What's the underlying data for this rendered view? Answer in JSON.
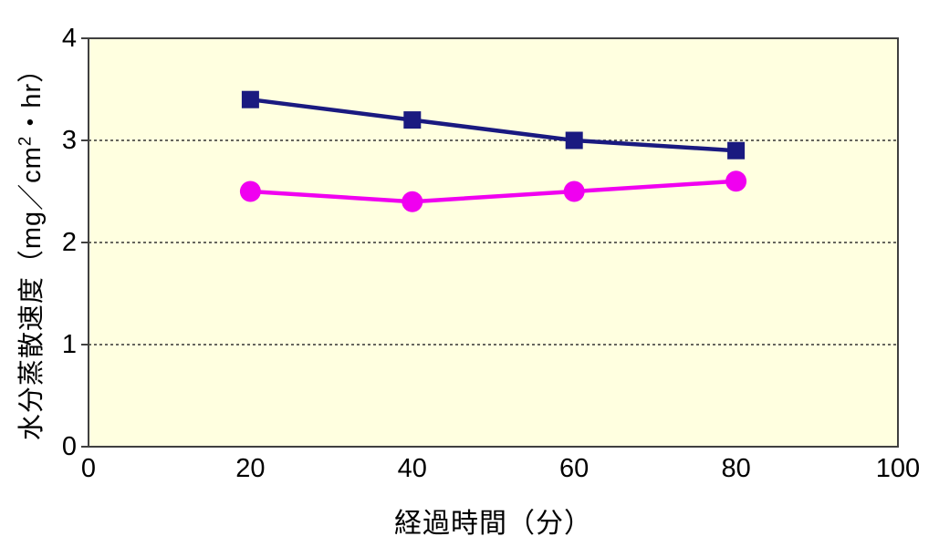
{
  "chart_data": {
    "type": "line",
    "x": [
      20,
      40,
      60,
      80
    ],
    "series": [
      {
        "name": "navy-square-series",
        "marker": "square",
        "color": "#1a1a80",
        "values": [
          3.4,
          3.2,
          3.0,
          2.9
        ]
      },
      {
        "name": "magenta-circle-series",
        "marker": "circle",
        "color": "#f000f0",
        "values": [
          2.5,
          2.4,
          2.5,
          2.6
        ]
      }
    ],
    "title": "",
    "xlabel": "経過時間（分）",
    "ylabel_prefix": "水分蒸散速度（mg／cm",
    "ylabel_sup": "2",
    "ylabel_suffix": "・hr）",
    "xlim": [
      0,
      100
    ],
    "ylim": [
      0,
      4
    ],
    "x_ticks": [
      0,
      20,
      40,
      60,
      80,
      100
    ],
    "y_ticks": [
      0,
      1,
      2,
      3,
      4
    ],
    "gridlines_y": [
      1,
      2,
      3
    ],
    "grid_style": "dotted",
    "legend_position": "none",
    "plot_bg_color": "#ffffe0",
    "page_bg_color": "#ffffff",
    "axis_color": "#404040",
    "gridline_color": "#333333"
  }
}
